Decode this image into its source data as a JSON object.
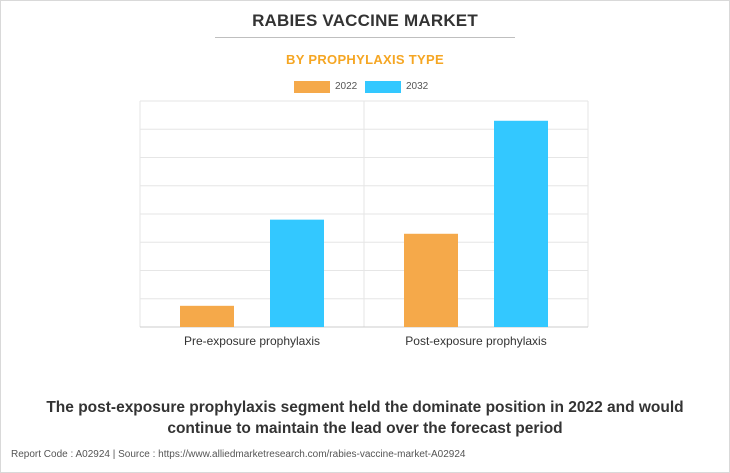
{
  "header": {
    "title": "RABIES VACCINE MARKET",
    "subtitle": "BY PROPHYLAXIS TYPE"
  },
  "legend": {
    "items": [
      "2022",
      "2032"
    ]
  },
  "colors": {
    "series_2022": "#f5a94a",
    "series_2032": "#33c8ff",
    "subtitle": "#f5a623",
    "grid": "#e6e6e6"
  },
  "chart_data": {
    "type": "bar",
    "title": "RABIES VACCINE MARKET",
    "subtitle": "BY PROPHYLAXIS TYPE",
    "categories": [
      "Pre-exposure prophylaxis",
      "Post-exposure prophylaxis"
    ],
    "series": [
      {
        "name": "2022",
        "values": [
          0.75,
          3.3
        ]
      },
      {
        "name": "2032",
        "values": [
          3.8,
          7.3
        ]
      }
    ],
    "ylim": [
      0,
      8
    ],
    "yticks_shown": false,
    "grid": true,
    "legend_position": "top-center",
    "xlabel": "",
    "ylabel": ""
  },
  "caption": "The post-exposure prophylaxis segment held the dominate position in 2022 and would continue to maintain the lead over the forecast period",
  "footer": "Report Code : A02924  |  Source : https://www.alliedmarketresearch.com/rabies-vaccine-market-A02924"
}
